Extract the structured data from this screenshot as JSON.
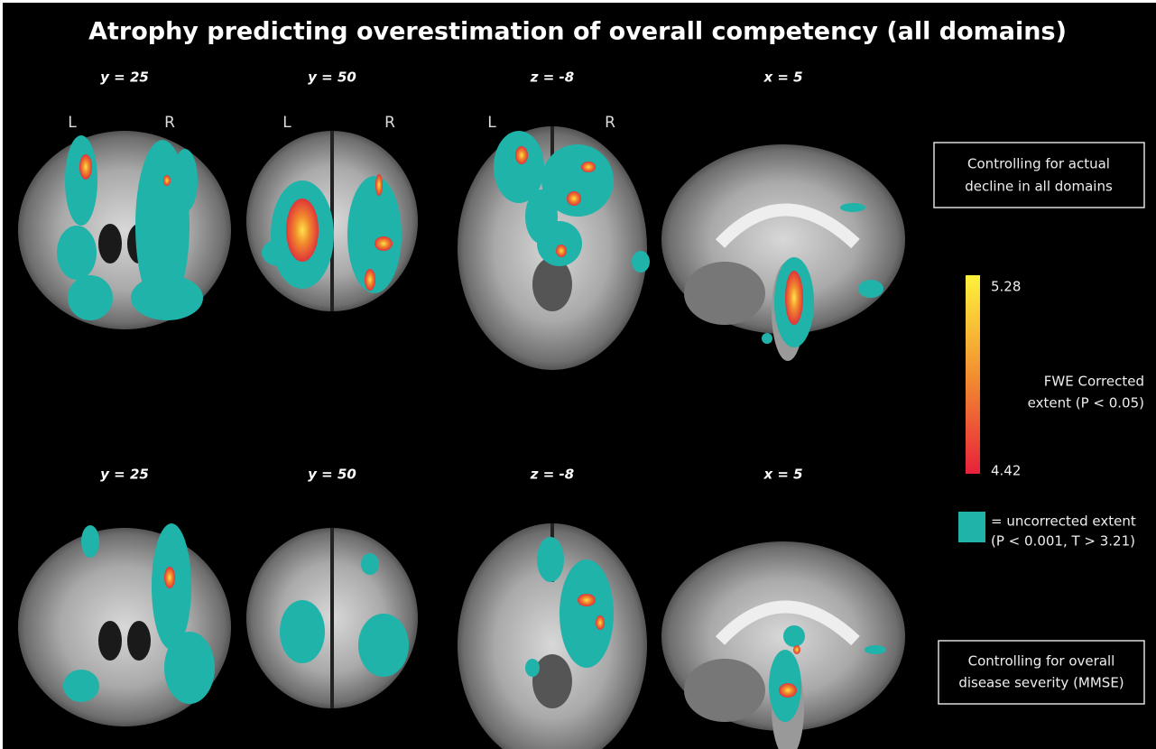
{
  "title": "Atrophy predicting overestimation of overall competency  (all domains)",
  "rows": [
    {
      "panels": [
        {
          "label": "y = 25",
          "left": "L",
          "right": "R"
        },
        {
          "label": "y = 50",
          "left": "L",
          "right": "R"
        },
        {
          "label": "z = -8",
          "left": "L",
          "right": "R"
        },
        {
          "label": "x = 5"
        }
      ],
      "note": [
        "Controlling for actual",
        "decline in all domains"
      ]
    },
    {
      "panels": [
        {
          "label": "y = 25"
        },
        {
          "label": "y = 50"
        },
        {
          "label": "z = -8"
        },
        {
          "label": "x = 5"
        }
      ],
      "note": [
        "Controlling for overall",
        "disease severity (MMSE)"
      ]
    }
  ],
  "colorbar": {
    "max": "5.28",
    "min": "4.42",
    "label": [
      "FWE Corrected",
      "extent (P < 0.05)"
    ]
  },
  "legend": [
    "= uncorrected extent",
    "(P < 0.001, T > 3.21)"
  ]
}
